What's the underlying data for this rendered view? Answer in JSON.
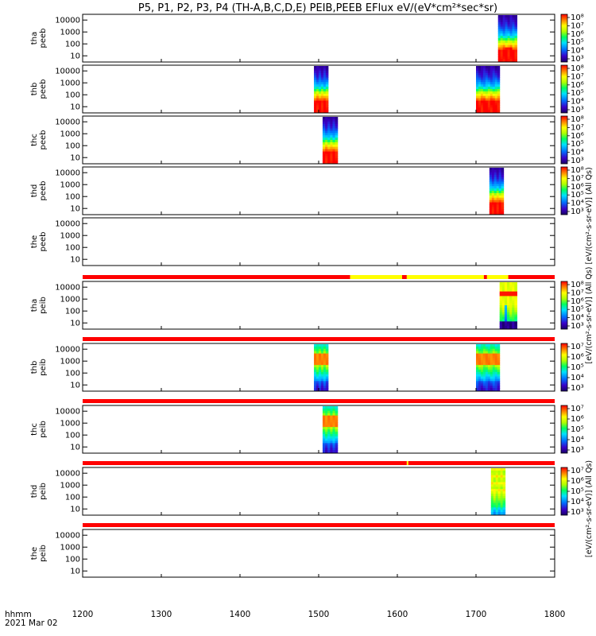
{
  "chart_data": {
    "type": "heatmap",
    "title": "P5, P1, P2, P3, P4 (TH-A,B,C,D,E) PEIB,PEEB EFlux eV/(eV*cm²*sec*sr)",
    "x": {
      "range": [
        1200,
        1800
      ],
      "ticks": [
        "1200",
        "1300",
        "1400",
        "1500",
        "1600",
        "1700",
        "1800"
      ],
      "label_line1": "hhmm",
      "label_line2": "2021 Mar 02"
    },
    "y_ticks": [
      "10000",
      "1000",
      "100",
      "10"
    ],
    "y_scale": "log",
    "colorbar_ticks_a": [
      "10⁸",
      "10⁷",
      "10⁶",
      "10⁵",
      "10⁴",
      "10³"
    ],
    "colorbar_ticks_b": [
      "10⁷",
      "10⁶",
      "10⁵",
      "10⁴",
      "10³"
    ],
    "colorbar_label_electrons": "[eV/(cm²-s-sr-eV)] (All Qs) [eV/(cm²-s-sr-eV)] (All Qs)",
    "colorbar_label_ions": "[eV/(cm²-s-sr-eV)] (All Qs)",
    "panels": [
      {
        "probe_line1": "tha",
        "probe_line2": "peeb",
        "colorbar": "a",
        "bursts": [
          {
            "start": 1728,
            "end": 1752,
            "profile": "electron-hot"
          }
        ]
      },
      {
        "probe_line1": "thb",
        "probe_line2": "peeb",
        "colorbar": "a",
        "bursts": [
          {
            "start": 1494,
            "end": 1512,
            "profile": "electron"
          },
          {
            "start": 1700,
            "end": 1730,
            "profile": "electron"
          }
        ]
      },
      {
        "probe_line1": "thc",
        "probe_line2": "peeb",
        "colorbar": "a",
        "bursts": [
          {
            "start": 1505,
            "end": 1524,
            "profile": "electron"
          }
        ]
      },
      {
        "probe_line1": "thd",
        "probe_line2": "peeb",
        "colorbar": "a",
        "bursts": [
          {
            "start": 1717,
            "end": 1735,
            "profile": "electron"
          }
        ]
      },
      {
        "probe_line1": "the",
        "probe_line2": "peeb",
        "colorbar": "none",
        "bursts": []
      },
      {
        "probe_line1": "tha",
        "probe_line2": "peib",
        "colorbar": "a",
        "bursts": [
          {
            "start": 1730,
            "end": 1752,
            "profile": "ion-a"
          }
        ]
      },
      {
        "probe_line1": "thb",
        "probe_line2": "peib",
        "colorbar": "b",
        "bursts": [
          {
            "start": 1494,
            "end": 1512,
            "profile": "ion"
          },
          {
            "start": 1700,
            "end": 1730,
            "profile": "ion"
          }
        ]
      },
      {
        "probe_line1": "thc",
        "probe_line2": "peib",
        "colorbar": "b",
        "bursts": [
          {
            "start": 1505,
            "end": 1524,
            "profile": "ion"
          }
        ]
      },
      {
        "probe_line1": "thd",
        "probe_line2": "peib",
        "colorbar": "b",
        "bursts": [
          {
            "start": 1719,
            "end": 1737,
            "profile": "ion-d"
          }
        ]
      },
      {
        "probe_line1": "the",
        "probe_line2": "peib",
        "colorbar": "none",
        "bursts": []
      }
    ],
    "mode_bars": [
      {
        "segments": [
          {
            "from": 1200,
            "to": 1540,
            "color": "#ff0000"
          },
          {
            "from": 1540,
            "to": 1606,
            "color": "#ffff00"
          },
          {
            "from": 1606,
            "to": 1612,
            "color": "#ff0000"
          },
          {
            "from": 1612,
            "to": 1710,
            "color": "#ffff00"
          },
          {
            "from": 1710,
            "to": 1714,
            "color": "#ff0000"
          },
          {
            "from": 1714,
            "to": 1741,
            "color": "#ffff00"
          },
          {
            "from": 1741,
            "to": 1800,
            "color": "#ff0000"
          }
        ]
      },
      {
        "segments": [
          {
            "from": 1200,
            "to": 1800,
            "color": "#ff0000"
          }
        ]
      },
      {
        "segments": [
          {
            "from": 1200,
            "to": 1800,
            "color": "#ff0000"
          }
        ]
      },
      {
        "segments": [
          {
            "from": 1200,
            "to": 1612,
            "color": "#ff0000"
          },
          {
            "from": 1612,
            "to": 1614,
            "color": "#ffff00"
          },
          {
            "from": 1614,
            "to": 1800,
            "color": "#ff0000"
          }
        ]
      },
      {
        "segments": [
          {
            "from": 1200,
            "to": 1800,
            "color": "#ff0000"
          }
        ]
      }
    ]
  }
}
